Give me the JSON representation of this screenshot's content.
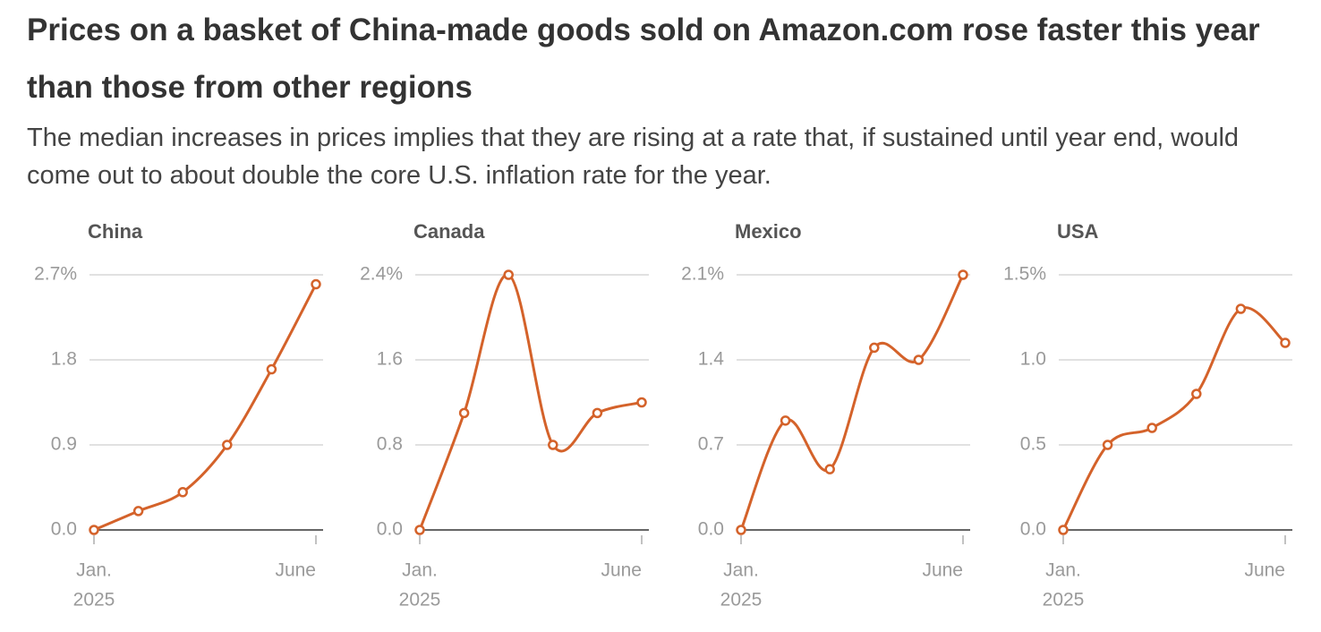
{
  "header": {
    "title": "Prices on a basket of China-made goods sold on Amazon.com rose faster this year than those from other regions",
    "subtitle": "The median increases in prices implies that they are rising at a rate that, if sustained until year end, would come out to about double the core U.S. inflation rate for the year."
  },
  "chart_data": [
    {
      "type": "line",
      "title": "China",
      "categories": [
        "Jan.",
        null,
        null,
        null,
        null,
        "June"
      ],
      "x_year": "2025",
      "values": [
        0,
        0.2,
        0.4,
        0.9,
        1.7,
        2.6
      ],
      "color": "#d4622a",
      "ylim": [
        0,
        2.7
      ],
      "yticks": [
        {
          "value": 0,
          "label": "0.0"
        },
        0.9,
        1.8,
        {
          "value": 2.7,
          "label": "2.7%"
        }
      ],
      "grid": true
    },
    {
      "type": "line",
      "title": "Canada",
      "categories": [
        "Jan.",
        null,
        null,
        null,
        null,
        "June"
      ],
      "x_year": "2025",
      "values": [
        0,
        1.1,
        2.4,
        0.8,
        1.1,
        1.2
      ],
      "color": "#d4622a",
      "ylim": [
        0,
        2.4
      ],
      "yticks": [
        {
          "value": 0,
          "label": "0.0"
        },
        0.8,
        1.6,
        {
          "value": 2.4,
          "label": "2.4%"
        }
      ],
      "grid": true
    },
    {
      "type": "line",
      "title": "Mexico",
      "categories": [
        "Jan.",
        null,
        null,
        null,
        null,
        "June"
      ],
      "x_year": "2025",
      "values": [
        0,
        0.9,
        0.5,
        1.5,
        1.4,
        2.1
      ],
      "color": "#d4622a",
      "ylim": [
        0,
        2.1
      ],
      "yticks": [
        {
          "value": 0,
          "label": "0.0"
        },
        0.7,
        1.4,
        {
          "value": 2.1,
          "label": "2.1%"
        }
      ],
      "grid": true
    },
    {
      "type": "line",
      "title": "USA",
      "categories": [
        "Jan.",
        null,
        null,
        null,
        null,
        "June"
      ],
      "x_year": "2025",
      "values": [
        0,
        0.5,
        0.6,
        0.8,
        1.3,
        1.1
      ],
      "color": "#d4622a",
      "ylim": [
        0,
        1.5
      ],
      "yticks": [
        {
          "value": 0,
          "label": "0.0"
        },
        0.5,
        {
          "value": 1,
          "label": "1.0"
        },
        {
          "value": 1.5,
          "label": "1.5%"
        }
      ],
      "grid": true
    }
  ]
}
